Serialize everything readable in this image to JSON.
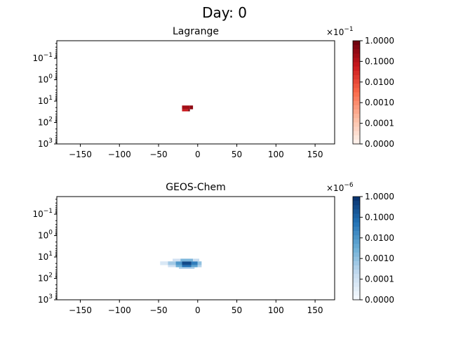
{
  "figure": {
    "suptitle": "Day: 0"
  },
  "chart_data": [
    {
      "type": "heatmap",
      "title": "Lagrange",
      "xlim": [
        -180,
        175
      ],
      "x_ticks": [
        -150,
        -100,
        -50,
        0,
        50,
        100,
        150
      ],
      "y_scale": "log",
      "y_inverted": true,
      "ylim": [
        1000,
        0.015
      ],
      "y_ticks": [
        {
          "value": 0.1,
          "base": "10",
          "exp": "−1"
        },
        {
          "value": 1,
          "base": "10",
          "exp": "0"
        },
        {
          "value": 10,
          "base": "10",
          "exp": "1"
        },
        {
          "value": 100,
          "base": "10",
          "exp": "2"
        },
        {
          "value": 1000,
          "base": "10",
          "exp": "3"
        }
      ],
      "cells": [
        {
          "x0": -20,
          "x1": -10,
          "y0": 16,
          "y1": 24,
          "level": 0.85
        },
        {
          "x0": -10,
          "x1": -6,
          "y0": 16,
          "y1": 24,
          "level": 0.9
        },
        {
          "x0": -20,
          "x1": -12,
          "y0": 24,
          "y1": 30,
          "level": 0.75
        },
        {
          "x0": -12,
          "x1": -10,
          "y0": 24,
          "y1": 30,
          "level": 1.0
        }
      ],
      "colorbar": {
        "cmap": "Reds",
        "tick_labels": [
          "1.0000",
          "0.1000",
          "0.0100",
          "0.0010",
          "0.0001",
          "0.0000"
        ],
        "offset_base": "×10",
        "offset_exp": "−1"
      }
    },
    {
      "type": "heatmap",
      "title": "GEOS-Chem",
      "xlim": [
        -180,
        175
      ],
      "x_ticks": [
        -150,
        -100,
        -50,
        0,
        50,
        100,
        150
      ],
      "y_scale": "log",
      "y_inverted": true,
      "ylim": [
        1000,
        0.015
      ],
      "y_ticks": [
        {
          "value": 0.1,
          "base": "10",
          "exp": "−1"
        },
        {
          "value": 1,
          "base": "10",
          "exp": "0"
        },
        {
          "value": 10,
          "base": "10",
          "exp": "1"
        },
        {
          "value": 100,
          "base": "10",
          "exp": "2"
        },
        {
          "value": 1000,
          "base": "10",
          "exp": "3"
        }
      ],
      "cells": [
        {
          "x0": -48,
          "x1": -38,
          "y0": 16,
          "y1": 24,
          "level": 0.15
        },
        {
          "x0": -38,
          "x1": -28,
          "y0": 16,
          "y1": 24,
          "level": 0.35
        },
        {
          "x0": -28,
          "x1": -20,
          "y0": 16,
          "y1": 24,
          "level": 0.6
        },
        {
          "x0": -20,
          "x1": -8,
          "y0": 16,
          "y1": 24,
          "level": 0.9
        },
        {
          "x0": -8,
          "x1": 0,
          "y0": 16,
          "y1": 24,
          "level": 0.7
        },
        {
          "x0": 0,
          "x1": 5,
          "y0": 16,
          "y1": 24,
          "level": 0.4
        },
        {
          "x0": -38,
          "x1": -28,
          "y0": 24,
          "y1": 30,
          "level": 0.2
        },
        {
          "x0": -28,
          "x1": -20,
          "y0": 24,
          "y1": 30,
          "level": 0.5
        },
        {
          "x0": -20,
          "x1": -8,
          "y0": 24,
          "y1": 30,
          "level": 0.75
        },
        {
          "x0": -8,
          "x1": 0,
          "y0": 24,
          "y1": 30,
          "level": 0.55
        },
        {
          "x0": 0,
          "x1": 5,
          "y0": 24,
          "y1": 30,
          "level": 0.3
        },
        {
          "x0": -32,
          "x1": -22,
          "y0": 12,
          "y1": 16,
          "level": 0.2
        },
        {
          "x0": -22,
          "x1": -6,
          "y0": 12,
          "y1": 16,
          "level": 0.45
        },
        {
          "x0": -6,
          "x1": 2,
          "y0": 12,
          "y1": 16,
          "level": 0.25
        },
        {
          "x0": -24,
          "x1": -4,
          "y0": 30,
          "y1": 36,
          "level": 0.3
        }
      ],
      "colorbar": {
        "cmap": "Blues",
        "tick_labels": [
          "1.0000",
          "0.1000",
          "0.0100",
          "0.0010",
          "0.0001",
          "0.0000"
        ],
        "offset_base": "×10",
        "offset_exp": "−6"
      }
    }
  ]
}
